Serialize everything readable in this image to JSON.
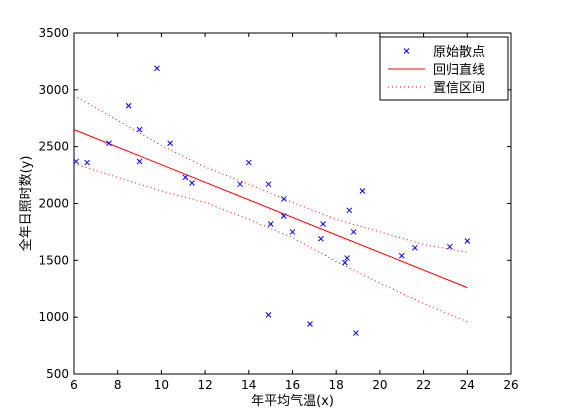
{
  "chart_data": {
    "type": "scatter",
    "title": "",
    "xlabel": "年平均气温(x)",
    "ylabel": "全年日照时数(y)",
    "xlim": [
      6,
      26
    ],
    "ylim": [
      500,
      3500
    ],
    "x_ticks": [
      6,
      8,
      10,
      12,
      14,
      16,
      18,
      20,
      22,
      24,
      26
    ],
    "y_ticks": [
      500,
      1000,
      1500,
      2000,
      2500,
      3000,
      3500
    ],
    "grid": false,
    "legend_position": "top-right",
    "series": [
      {
        "name": "原始散点",
        "kind": "markers",
        "marker": "x",
        "color": "#0000ff",
        "points": [
          [
            6.1,
            2370
          ],
          [
            6.6,
            2360
          ],
          [
            7.6,
            2530
          ],
          [
            8.5,
            2860
          ],
          [
            9.0,
            2650
          ],
          [
            9.0,
            2370
          ],
          [
            9.8,
            3190
          ],
          [
            10.4,
            2530
          ],
          [
            11.1,
            2230
          ],
          [
            11.4,
            2180
          ],
          [
            13.6,
            2170
          ],
          [
            14.0,
            2360
          ],
          [
            14.9,
            2170
          ],
          [
            15.0,
            1820
          ],
          [
            15.6,
            2040
          ],
          [
            15.6,
            1890
          ],
          [
            16.0,
            1750
          ],
          [
            17.3,
            1690
          ],
          [
            17.4,
            1820
          ],
          [
            18.4,
            1480
          ],
          [
            18.5,
            1520
          ],
          [
            18.6,
            1940
          ],
          [
            18.8,
            1750
          ],
          [
            19.2,
            2110
          ],
          [
            21.0,
            1540
          ],
          [
            21.6,
            1610
          ],
          [
            23.2,
            1620
          ],
          [
            24.0,
            1670
          ],
          [
            14.9,
            1020
          ],
          [
            16.8,
            940
          ],
          [
            18.9,
            860
          ]
        ]
      },
      {
        "name": "回归直线",
        "kind": "line",
        "style": "solid",
        "color": "#ff0000",
        "points": [
          [
            6.0,
            2650
          ],
          [
            24.0,
            1260
          ]
        ]
      },
      {
        "name": "置信区间",
        "kind": "band",
        "style": "dotted",
        "color": "#ff0000",
        "upper": [
          [
            6.0,
            2950
          ],
          [
            8.0,
            2730
          ],
          [
            10.0,
            2510
          ],
          [
            12.0,
            2320
          ],
          [
            14.0,
            2170
          ],
          [
            16.0,
            2010
          ],
          [
            18.0,
            1860
          ],
          [
            20.0,
            1750
          ],
          [
            22.0,
            1640
          ],
          [
            24.0,
            1570
          ]
        ],
        "lower": [
          [
            6.0,
            2350
          ],
          [
            8.0,
            2230
          ],
          [
            10.0,
            2110
          ],
          [
            12.0,
            2010
          ],
          [
            14.0,
            1860
          ],
          [
            16.0,
            1700
          ],
          [
            18.0,
            1490
          ],
          [
            20.0,
            1300
          ],
          [
            22.0,
            1120
          ],
          [
            24.0,
            960
          ]
        ]
      }
    ]
  }
}
